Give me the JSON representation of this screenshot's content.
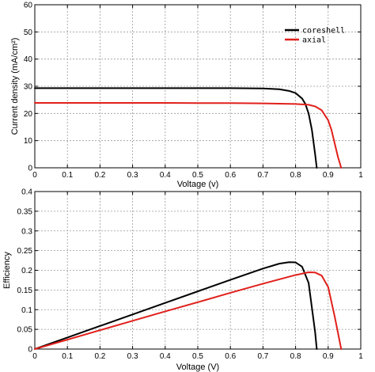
{
  "chart_data": [
    {
      "type": "line",
      "title": "",
      "xlabel": "Voltage (v)",
      "ylabel": "Current density (mA/cm²)",
      "xlim": [
        0,
        1
      ],
      "ylim": [
        0,
        60
      ],
      "xticks": [
        "0",
        "0.1",
        "0.2",
        "0.3",
        "0.4",
        "0.5",
        "0.6",
        "0.7",
        "0.8",
        "0.9",
        "1"
      ],
      "yticks": [
        "0",
        "10",
        "20",
        "30",
        "40",
        "50",
        "60"
      ],
      "grid": true,
      "legend_position": "top-right",
      "series": [
        {
          "name": "coreshell",
          "color": "#000000",
          "x": [
            0,
            0.1,
            0.2,
            0.3,
            0.4,
            0.5,
            0.6,
            0.7,
            0.75,
            0.78,
            0.8,
            0.82,
            0.83,
            0.84,
            0.85,
            0.86,
            0.865
          ],
          "y": [
            29.3,
            29.3,
            29.3,
            29.3,
            29.3,
            29.3,
            29.3,
            29.2,
            28.9,
            28.3,
            27.5,
            25.5,
            23.5,
            20.0,
            14.0,
            5.0,
            0
          ]
        },
        {
          "name": "axial",
          "color": "#e0201b",
          "x": [
            0,
            0.1,
            0.2,
            0.3,
            0.4,
            0.5,
            0.6,
            0.7,
            0.8,
            0.84,
            0.86,
            0.88,
            0.9,
            0.91,
            0.92,
            0.93,
            0.94
          ],
          "y": [
            23.9,
            23.9,
            23.9,
            23.9,
            23.9,
            23.8,
            23.8,
            23.7,
            23.5,
            23.2,
            22.6,
            21.2,
            17.5,
            14.0,
            9.0,
            4.0,
            0
          ]
        }
      ]
    },
    {
      "type": "line",
      "title": "",
      "xlabel": "Voltage (V)",
      "ylabel": "Efficiency",
      "xlim": [
        0,
        1
      ],
      "ylim": [
        0,
        0.4
      ],
      "xticks": [
        "0",
        "0.1",
        "0.2",
        "0.3",
        "0.4",
        "0.5",
        "0.6",
        "0.7",
        "0.8",
        "0.9",
        "1"
      ],
      "yticks": [
        "0",
        "0.05",
        "0.1",
        "0.15",
        "0.2",
        "0.25",
        "0.3",
        "0.35",
        "0.4"
      ],
      "grid": true,
      "series": [
        {
          "name": "",
          "color": "#000000",
          "x": [
            0,
            0.1,
            0.2,
            0.3,
            0.4,
            0.5,
            0.6,
            0.7,
            0.75,
            0.78,
            0.8,
            0.82,
            0.84,
            0.86,
            0.865
          ],
          "y": [
            0,
            0.0293,
            0.0586,
            0.0879,
            0.1172,
            0.1465,
            0.1758,
            0.2044,
            0.2168,
            0.2207,
            0.22,
            0.2091,
            0.168,
            0.043,
            0
          ]
        },
        {
          "name": "",
          "color": "#e0201b",
          "x": [
            0,
            0.1,
            0.2,
            0.3,
            0.4,
            0.5,
            0.6,
            0.7,
            0.8,
            0.84,
            0.86,
            0.88,
            0.9,
            0.92,
            0.94
          ],
          "y": [
            0,
            0.0239,
            0.0478,
            0.0717,
            0.0956,
            0.119,
            0.1428,
            0.1659,
            0.188,
            0.1949,
            0.1944,
            0.1866,
            0.1575,
            0.0828,
            0
          ]
        }
      ]
    }
  ]
}
